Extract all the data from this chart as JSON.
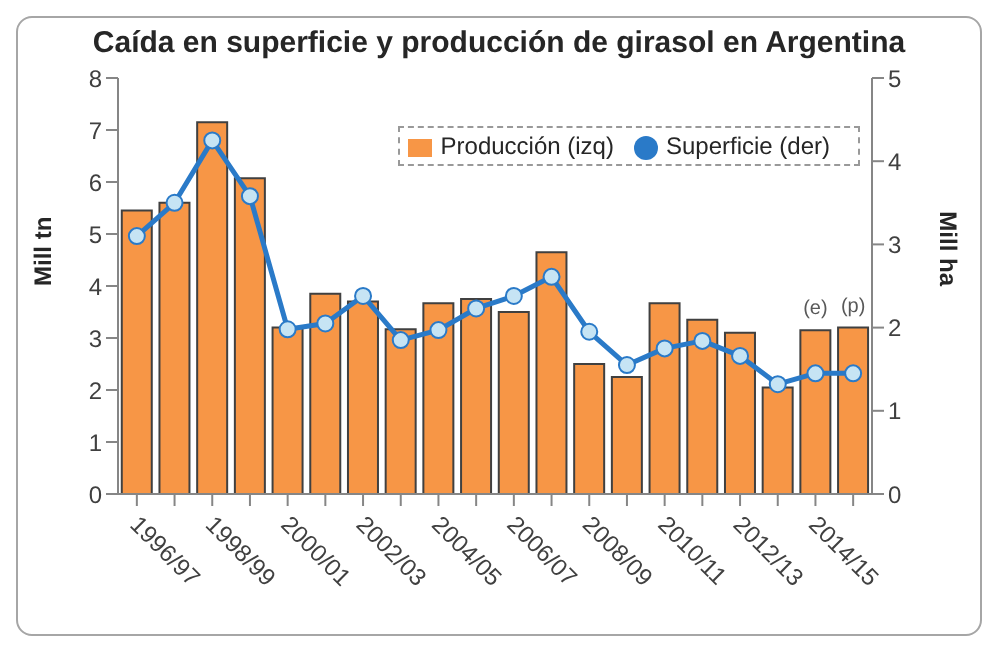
{
  "chart_data": {
    "type": "bar",
    "title": "Caída en superficie y producción de girasol en Argentina",
    "categories": [
      "1996/97",
      null,
      "1998/99",
      null,
      "2000/01",
      null,
      "2002/03",
      null,
      "2004/05",
      null,
      "2006/07",
      null,
      "2008/09",
      null,
      "2010/11",
      null,
      "2012/13",
      null,
      "2014/15",
      null
    ],
    "series": [
      {
        "name": "Producción (izq)",
        "color": "#f79646",
        "values": [
          5.45,
          5.6,
          7.15,
          6.07,
          3.2,
          3.85,
          3.7,
          3.17,
          3.67,
          3.75,
          3.5,
          4.65,
          2.5,
          2.25,
          3.67,
          3.35,
          3.1,
          2.05,
          3.15,
          3.2
        ]
      },
      {
        "name": "Superficie (der)",
        "type": "line",
        "axis": "y2",
        "color": "#2a7ac8",
        "marker": "circle",
        "values": [
          3.1,
          3.5,
          4.25,
          3.58,
          1.98,
          2.05,
          2.38,
          1.85,
          1.97,
          2.23,
          2.38,
          2.61,
          1.95,
          1.55,
          1.75,
          1.84,
          1.66,
          1.32,
          1.45,
          1.45
        ]
      }
    ],
    "ylabel": "Mill tn",
    "y2label": "Mill ha",
    "ylim": [
      0,
      8
    ],
    "yticks": [
      0,
      1,
      2,
      3,
      4,
      5,
      6,
      7,
      8
    ],
    "y2lim": [
      0,
      5
    ],
    "y2ticks": [
      0,
      1,
      2,
      3,
      4,
      5
    ],
    "annotations": [
      {
        "text": "(e)",
        "x": "2014/15",
        "y": 3.15
      },
      {
        "text": "(p)",
        "y": 3.2
      }
    ],
    "legend": "top right"
  }
}
